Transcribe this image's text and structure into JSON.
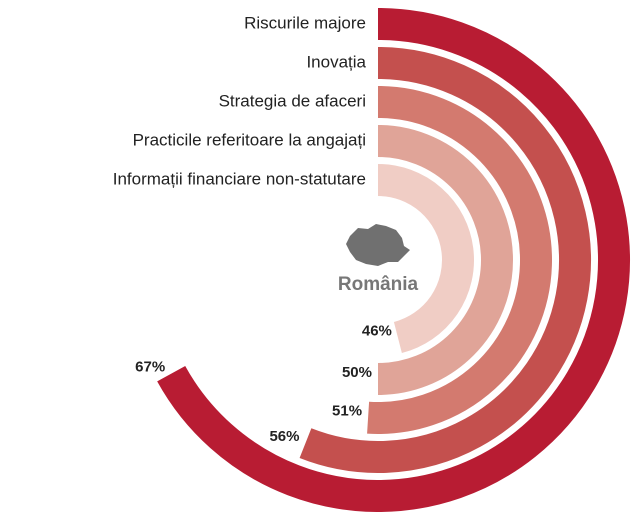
{
  "chart_data": {
    "type": "radial_bar",
    "center_label": "România",
    "categories": [
      "Riscurile majore",
      "Inovația",
      "Strategia de afaceri",
      "Practicile referitoare la angajați",
      "Informații financiare non-statutare"
    ],
    "values": [
      67,
      56,
      51,
      50,
      46
    ],
    "value_labels": [
      "67%",
      "56%",
      "51%",
      "50%",
      "46%"
    ],
    "colors": [
      "#b81c33",
      "#c4504e",
      "#d37a6f",
      "#e0a498",
      "#f0cdc5"
    ],
    "ylim": [
      0,
      100
    ]
  }
}
